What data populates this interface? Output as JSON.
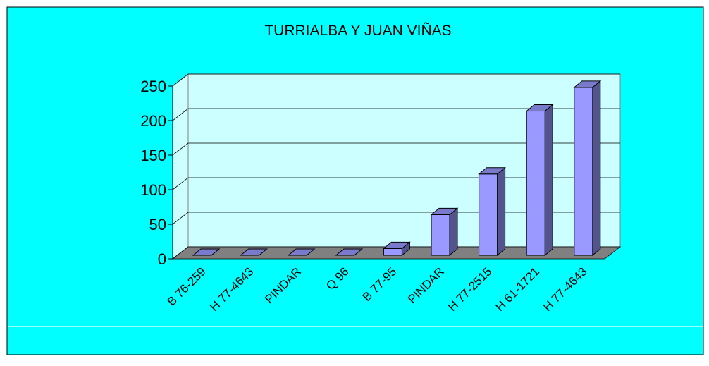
{
  "chart_data": {
    "type": "bar3d",
    "title": "TURRIALBA Y JUAN VIÑAS",
    "categories": [
      "B 76-259",
      "H 77-4643",
      "PINDAR",
      "Q 96",
      "B 77-95",
      "PINDAR",
      "H 77-2515",
      "H 61-1721",
      "H 77-4643"
    ],
    "values": [
      0,
      0,
      0,
      0,
      10,
      60,
      120,
      213,
      248
    ],
    "color": "#9999ff",
    "ylim": [
      0,
      250
    ],
    "yticks": [
      0,
      50,
      100,
      150,
      200,
      250
    ],
    "grid": true
  }
}
